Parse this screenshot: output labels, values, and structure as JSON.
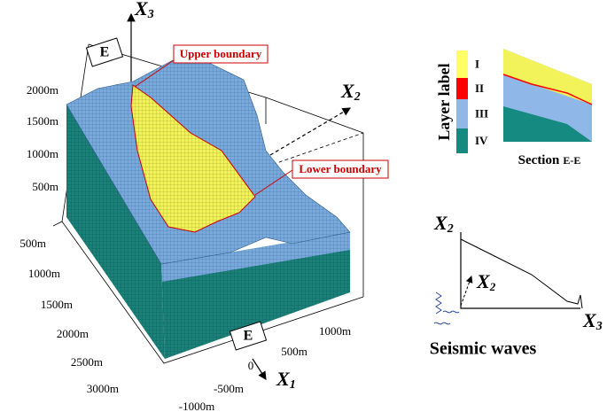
{
  "model": {
    "axes": {
      "x3": {
        "base": "X",
        "sub": "3"
      },
      "x2": {
        "base": "X",
        "sub": "2"
      },
      "x1": {
        "base": "X",
        "sub": "1"
      }
    },
    "section_markers": [
      "E",
      "E"
    ],
    "annotations": {
      "upper": "Upper boundary",
      "lower": "Lower boundary"
    },
    "vertical_scale": [
      "2000m",
      "1500m",
      "1000m",
      "500m"
    ],
    "depth_scale": [
      "500m",
      "1000m",
      "1500m",
      "2000m",
      "2500m",
      "3000m"
    ],
    "x1_scale": [
      "1000m",
      "500m",
      "0",
      "-500m",
      "-1000m"
    ]
  },
  "legend": {
    "title": "Layer label",
    "layers": [
      {
        "label": "I",
        "color": "#ffff66"
      },
      {
        "label": "II",
        "color": "#ff0000"
      },
      {
        "label": "III",
        "color": "#8fb8e8"
      },
      {
        "label": "IV",
        "color": "#148a80"
      }
    ],
    "section_title": "Section",
    "section_name": "E-E"
  },
  "seismic": {
    "x2": {
      "base": "X",
      "sub": "2"
    },
    "direction": {
      "base": "X",
      "sub": "2"
    },
    "x3": {
      "base": "X",
      "sub": "3"
    },
    "caption": "Seismic waves"
  }
}
